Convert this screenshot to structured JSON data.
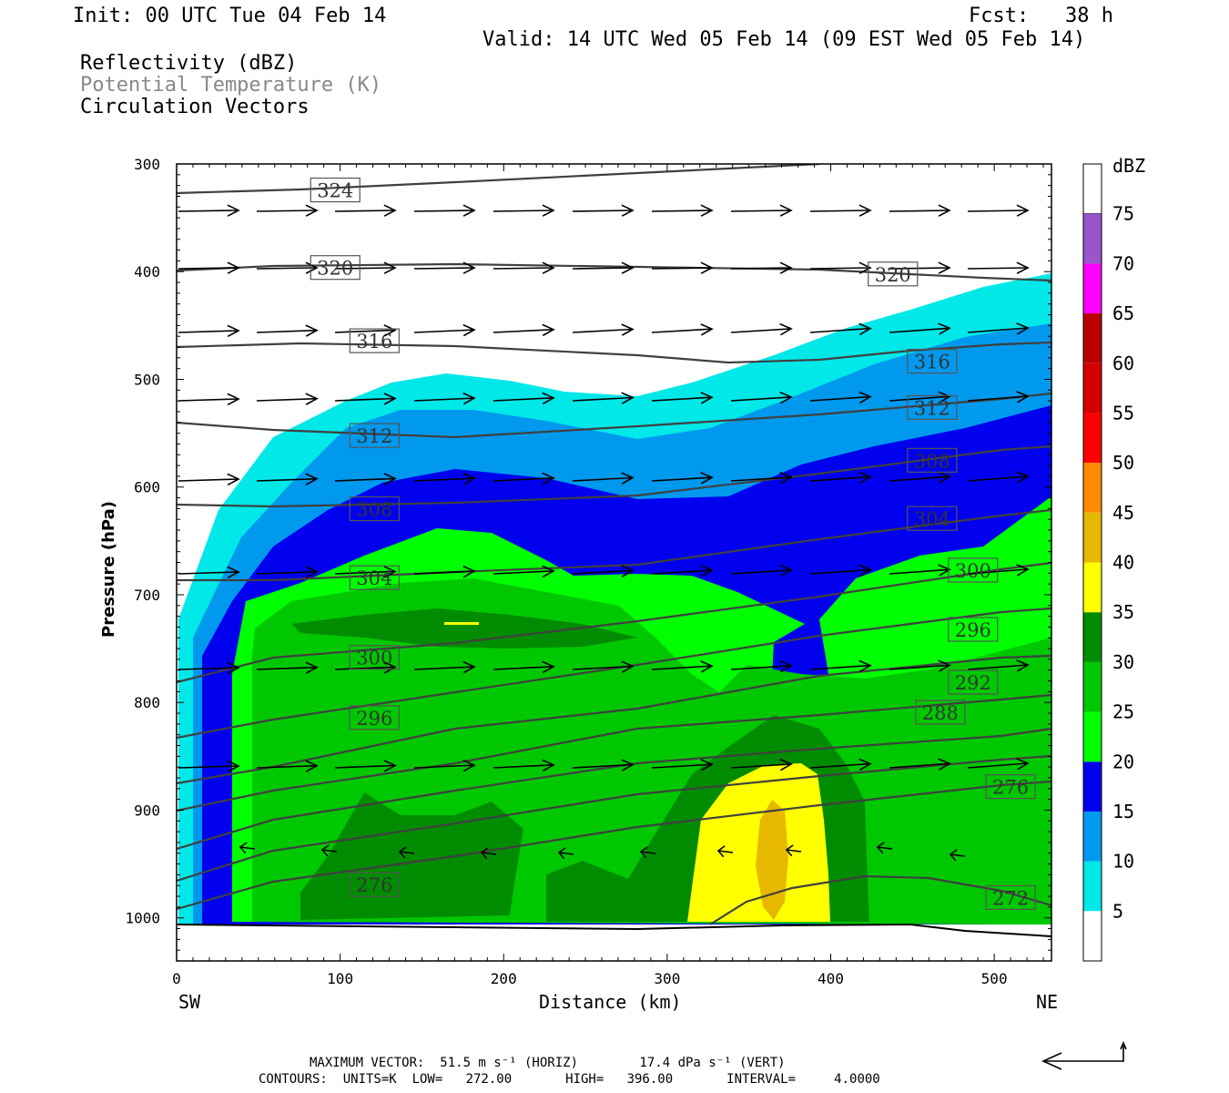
{
  "header": {
    "init": "Init: 00 UTC Tue 04 Feb 14",
    "fcst": "Fcst:   38 h",
    "valid": "Valid: 14 UTC Wed 05 Feb 14 (09 EST Wed 05 Feb 14)"
  },
  "fields": {
    "reflectivity": "Reflectivity (dBZ)",
    "theta": "Potential Temperature (K)",
    "vectors": "Circulation Vectors"
  },
  "footer": {
    "max_vector": "MAXIMUM VECTOR:  51.5 m s⁻¹ (HORIZ)        17.4 dPa s⁻¹ (VERT)",
    "contours": "CONTOURS:  UNITS=K  LOW=   272.00       HIGH=   396.00       INTERVAL=     4.0000"
  },
  "colors": {
    "dbz_fill": [
      "#00e8e8",
      "#0099ee",
      "#0000ee",
      "#00ff00",
      "#00c800",
      "#008c00",
      "#ffff00",
      "#e6b800",
      "#ff8c00",
      "#ff0000",
      "#d20000",
      "#bb0000",
      "#ff00ff",
      "#9955cc"
    ],
    "theta_line": "#404040",
    "vector": "#000000"
  },
  "chart_data": {
    "type": "contour",
    "xlabel": "Distance (km)",
    "ylabel": "Pressure (hPa)",
    "x_ticks": [
      0,
      100,
      200,
      300,
      400,
      500
    ],
    "y_ticks": [
      300,
      400,
      500,
      600,
      700,
      800,
      900,
      1000
    ],
    "xlim": [
      0,
      535
    ],
    "ylim": [
      1040,
      300
    ],
    "x_left_label": "SW",
    "x_right_label": "NE",
    "colorbar": {
      "title": "dBZ",
      "levels": [
        5,
        10,
        15,
        20,
        25,
        30,
        35,
        40,
        45,
        50,
        55,
        60,
        65,
        70,
        75
      ]
    },
    "theta_labels": [
      {
        "value": "324",
        "x": 97,
        "p": 325
      },
      {
        "value": "320",
        "x": 97,
        "p": 397
      },
      {
        "value": "320",
        "x": 438,
        "p": 403
      },
      {
        "value": "316",
        "x": 121,
        "p": 465
      },
      {
        "value": "316",
        "x": 462,
        "p": 484
      },
      {
        "value": "312",
        "x": 121,
        "p": 553
      },
      {
        "value": "312",
        "x": 462,
        "p": 527
      },
      {
        "value": "308",
        "x": 121,
        "p": 621
      },
      {
        "value": "308",
        "x": 462,
        "p": 576
      },
      {
        "value": "304",
        "x": 121,
        "p": 685
      },
      {
        "value": "304",
        "x": 462,
        "p": 630
      },
      {
        "value": "300",
        "x": 121,
        "p": 759
      },
      {
        "value": "300",
        "x": 487,
        "p": 678
      },
      {
        "value": "296",
        "x": 121,
        "p": 815
      },
      {
        "value": "296",
        "x": 487,
        "p": 733
      },
      {
        "value": "292",
        "x": 487,
        "p": 782
      },
      {
        "value": "288",
        "x": 467,
        "p": 810
      },
      {
        "value": "276",
        "x": 121,
        "p": 970
      },
      {
        "value": "276",
        "x": 510,
        "p": 879
      },
      {
        "value": "272",
        "x": 510,
        "p": 982
      }
    ]
  }
}
